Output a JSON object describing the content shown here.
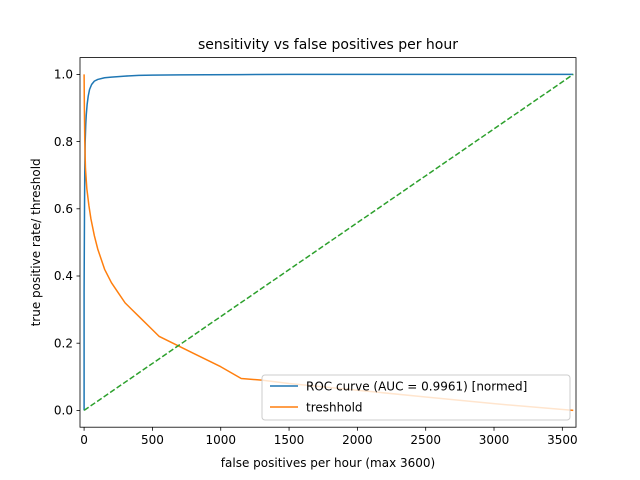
{
  "chart_data": {
    "type": "line",
    "title": "sensitivity vs false positives per hour",
    "xlabel": "false positives per hour (max 3600)",
    "ylabel": "true positive rate/ threshold",
    "xlim": [
      -30,
      3600
    ],
    "ylim": [
      -0.05,
      1.05
    ],
    "xticks": [
      0,
      500,
      1000,
      1500,
      2000,
      2500,
      3000,
      3500
    ],
    "xtick_labels": [
      "0",
      "500",
      "1000",
      "1500",
      "2000",
      "2500",
      "3000",
      "3500"
    ],
    "yticks": [
      0.0,
      0.2,
      0.4,
      0.6,
      0.8,
      1.0
    ],
    "ytick_labels": [
      "0.0",
      "0.2",
      "0.4",
      "0.6",
      "0.8",
      "1.0"
    ],
    "grid": false,
    "legend_position": "lower-right",
    "series": [
      {
        "name": "ROC curve (AUC = 0.9961) [normed]",
        "color": "#1f77b4",
        "dash": "solid",
        "x": [
          0,
          0,
          3,
          5,
          8,
          12,
          16,
          22,
          30,
          40,
          55,
          75,
          100,
          150,
          200,
          300,
          400,
          500,
          700,
          900,
          1150,
          1500,
          2000,
          2500,
          3000,
          3580
        ],
        "y": [
          0.0,
          0.35,
          0.6,
          0.72,
          0.8,
          0.85,
          0.88,
          0.91,
          0.935,
          0.955,
          0.97,
          0.98,
          0.985,
          0.99,
          0.992,
          0.995,
          0.997,
          0.998,
          0.9985,
          0.999,
          0.9995,
          1.0,
          1.0,
          1.0,
          1.0,
          1.0
        ]
      },
      {
        "name": "treshhold",
        "color": "#ff7f0e",
        "dash": "solid",
        "x": [
          0,
          2,
          5,
          10,
          20,
          35,
          50,
          75,
          100,
          150,
          200,
          250,
          300,
          350,
          400,
          500,
          550,
          700,
          800,
          1000,
          1150,
          1300,
          1500,
          2000,
          2500,
          3000,
          3580
        ],
        "y": [
          1.0,
          0.9,
          0.8,
          0.72,
          0.66,
          0.61,
          0.57,
          0.52,
          0.48,
          0.42,
          0.38,
          0.35,
          0.32,
          0.3,
          0.28,
          0.24,
          0.22,
          0.19,
          0.17,
          0.13,
          0.095,
          0.09,
          0.08,
          0.06,
          0.04,
          0.02,
          0.0
        ]
      },
      {
        "name": "",
        "color": "#2ca02c",
        "dash": "dashed",
        "x": [
          0,
          3580
        ],
        "y": [
          0.0,
          1.0
        ]
      }
    ]
  }
}
